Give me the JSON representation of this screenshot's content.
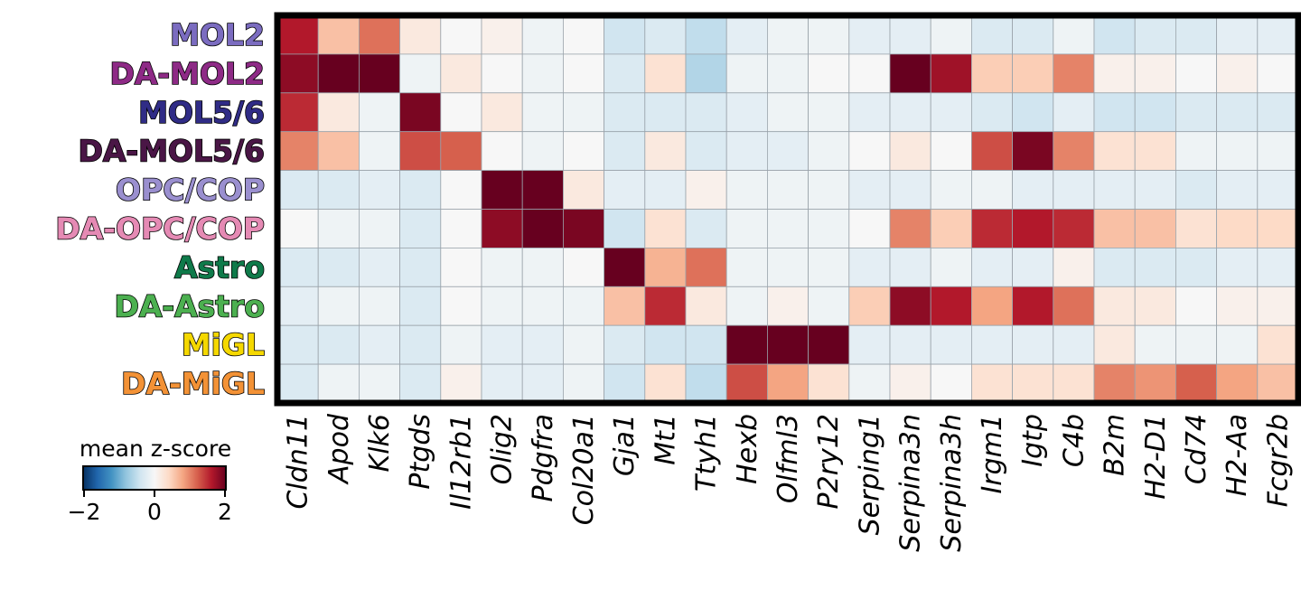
{
  "chart_data": {
    "type": "heatmap",
    "title": "",
    "xlabel": "",
    "ylabel": "",
    "rows": [
      {
        "label": "MOL2",
        "color": "#7b6cc0"
      },
      {
        "label": "DA-MOL2",
        "color": "#8e2a86"
      },
      {
        "label": "MOL5/6",
        "color": "#302c86"
      },
      {
        "label": "DA-MOL5/6",
        "color": "#4a1646"
      },
      {
        "label": "OPC/COP",
        "color": "#9a8fcf"
      },
      {
        "label": "DA-OPC/COP",
        "color": "#e58ab4"
      },
      {
        "label": "Astro",
        "color": "#0f7a4a"
      },
      {
        "label": "DA-Astro",
        "color": "#4cb050"
      },
      {
        "label": "MiGL",
        "color": "#f5d800"
      },
      {
        "label": "DA-MiGL",
        "color": "#f39236"
      }
    ],
    "columns": [
      "Cldn11",
      "Apod",
      "Klk6",
      "Ptgds",
      "Il12rb1",
      "Olig2",
      "Pdgfra",
      "Col20a1",
      "Gja1",
      "Mt1",
      "Ttyh1",
      "Hexb",
      "Olfml3",
      "P2ry12",
      "Serping1",
      "Serpina3n",
      "Serpina3h",
      "Irgm1",
      "Igtp",
      "C4b",
      "B2m",
      "H2-D1",
      "Cd74",
      "H2-Aa",
      "Fcgr2b"
    ],
    "values": [
      [
        1.6,
        0.6,
        1.1,
        0.2,
        0.0,
        0.1,
        -0.1,
        0.0,
        -0.4,
        -0.3,
        -0.5,
        -0.2,
        -0.1,
        -0.1,
        -0.2,
        -0.2,
        -0.1,
        -0.3,
        -0.3,
        -0.1,
        -0.4,
        -0.3,
        -0.3,
        -0.2,
        -0.2
      ],
      [
        1.8,
        2.0,
        2.0,
        -0.1,
        0.2,
        0.0,
        -0.1,
        0.0,
        -0.3,
        0.3,
        -0.6,
        -0.1,
        -0.1,
        0.0,
        0.0,
        2.0,
        1.7,
        0.5,
        0.5,
        1.0,
        0.1,
        0.1,
        0.0,
        0.1,
        0.0
      ],
      [
        1.5,
        0.2,
        -0.1,
        1.9,
        0.0,
        0.2,
        -0.1,
        -0.1,
        -0.3,
        -0.3,
        -0.3,
        -0.2,
        -0.1,
        -0.1,
        -0.2,
        -0.2,
        -0.2,
        -0.3,
        -0.4,
        -0.2,
        -0.4,
        -0.4,
        -0.3,
        -0.3,
        -0.3
      ],
      [
        1.0,
        0.6,
        -0.1,
        1.3,
        1.2,
        0.0,
        -0.1,
        0.0,
        -0.3,
        0.2,
        -0.3,
        -0.2,
        -0.2,
        -0.1,
        0.0,
        0.2,
        0.0,
        1.3,
        1.9,
        1.0,
        0.3,
        0.3,
        -0.1,
        -0.1,
        -0.1
      ],
      [
        -0.3,
        -0.3,
        -0.2,
        -0.3,
        0.0,
        2.0,
        2.0,
        0.2,
        -0.2,
        -0.2,
        0.1,
        -0.1,
        -0.1,
        -0.1,
        -0.2,
        -0.2,
        -0.1,
        -0.1,
        -0.2,
        -0.2,
        -0.2,
        -0.2,
        -0.3,
        -0.2,
        -0.2
      ],
      [
        0.0,
        -0.1,
        -0.1,
        -0.3,
        0.0,
        1.8,
        2.0,
        1.9,
        -0.4,
        0.3,
        -0.3,
        -0.1,
        -0.1,
        -0.1,
        0.0,
        1.0,
        0.5,
        1.5,
        1.6,
        1.5,
        0.6,
        0.6,
        0.3,
        0.4,
        0.4
      ],
      [
        -0.3,
        -0.3,
        -0.2,
        -0.3,
        0.0,
        -0.1,
        -0.1,
        0.0,
        2.0,
        0.7,
        1.1,
        -0.1,
        -0.1,
        -0.1,
        -0.2,
        -0.2,
        -0.1,
        -0.2,
        -0.2,
        0.1,
        -0.3,
        -0.3,
        -0.3,
        -0.2,
        -0.2
      ],
      [
        -0.2,
        -0.1,
        -0.1,
        -0.3,
        0.0,
        -0.1,
        -0.1,
        -0.1,
        0.6,
        1.5,
        0.2,
        -0.1,
        0.1,
        -0.1,
        0.5,
        1.8,
        1.6,
        0.8,
        1.6,
        1.1,
        0.2,
        0.2,
        0.0,
        0.1,
        0.1
      ],
      [
        -0.3,
        -0.3,
        -0.2,
        -0.3,
        -0.1,
        -0.2,
        -0.2,
        -0.1,
        -0.3,
        -0.4,
        -0.4,
        2.0,
        2.0,
        2.0,
        -0.2,
        -0.2,
        -0.2,
        -0.2,
        -0.2,
        -0.2,
        0.2,
        -0.1,
        -0.1,
        -0.1,
        0.3
      ],
      [
        -0.3,
        -0.1,
        -0.1,
        -0.3,
        0.1,
        -0.2,
        -0.2,
        -0.1,
        -0.4,
        0.3,
        -0.5,
        1.3,
        0.8,
        0.3,
        -0.1,
        0.1,
        0.0,
        0.3,
        0.3,
        0.3,
        1.0,
        0.9,
        1.2,
        0.8,
        0.6
      ]
    ],
    "colorbar": {
      "label": "mean z-score",
      "ticks": [
        "−2",
        "0",
        "2"
      ],
      "vmin": -2,
      "vmax": 2,
      "colormap": "RdBu_r"
    },
    "grid": true
  }
}
